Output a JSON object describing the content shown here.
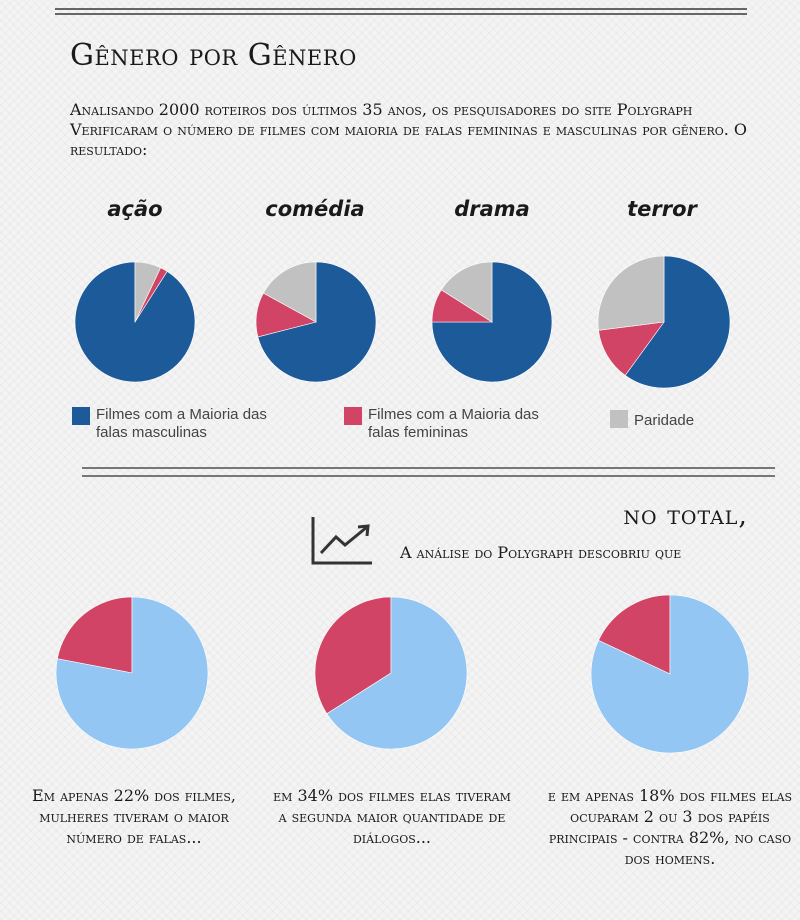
{
  "header": {
    "title": "Gênero por Gênero",
    "intro": "Analisando 2000 roteiros dos últimos 35 anos, os pesquisadores do site Polygraph Verificaram o número de filmes com maioria de falas femininas e masculinas por gênero. O resultado:"
  },
  "colors": {
    "male": "#1c5a99",
    "female": "#d14465",
    "parity": "#c1c1c1",
    "total_male": "#93c6f3",
    "total_female": "#d14465"
  },
  "legend": {
    "male": "Filmes com a Maioria das falas masculinas",
    "female": "Filmes com a Maioria das falas femininas",
    "parity": "Paridade"
  },
  "total": {
    "title": "no total,",
    "subtitle": "A análise do Polygraph descobriu que",
    "icon": "trend-chart-icon"
  },
  "chart_data": [
    {
      "type": "pie",
      "title": "ação",
      "slices": [
        {
          "name": "Filmes com a Maioria das falas masculinas",
          "value": 91
        },
        {
          "name": "Filmes com a Maioria das falas femininas",
          "value": 2
        },
        {
          "name": "Paridade",
          "value": 7
        }
      ]
    },
    {
      "type": "pie",
      "title": "comédia",
      "slices": [
        {
          "name": "Filmes com a Maioria das falas masculinas",
          "value": 71
        },
        {
          "name": "Filmes com a Maioria das falas femininas",
          "value": 12
        },
        {
          "name": "Paridade",
          "value": 17
        }
      ]
    },
    {
      "type": "pie",
      "title": "drama",
      "slices": [
        {
          "name": "Filmes com a Maioria das falas masculinas",
          "value": 75
        },
        {
          "name": "Filmes com a Maioria das falas femininas",
          "value": 9
        },
        {
          "name": "Paridade",
          "value": 16
        }
      ]
    },
    {
      "type": "pie",
      "title": "terror",
      "slices": [
        {
          "name": "Filmes com a Maioria das falas masculinas",
          "value": 60
        },
        {
          "name": "Filmes com a Maioria das falas femininas",
          "value": 13
        },
        {
          "name": "Paridade",
          "value": 27
        }
      ]
    },
    {
      "type": "pie",
      "title": "",
      "caption": "Em apenas 22% dos filmes, mulheres tiveram o maior número de falas...",
      "slices": [
        {
          "name": "mulheres",
          "value": 22
        },
        {
          "name": "",
          "value": 78
        }
      ]
    },
    {
      "type": "pie",
      "title": "",
      "caption": "em 34% dos filmes elas tiveram a segunda maior quantidade de diálogos...",
      "slices": [
        {
          "name": "elas",
          "value": 34
        },
        {
          "name": "",
          "value": 66
        }
      ]
    },
    {
      "type": "pie",
      "title": "",
      "caption": "e em apenas 18% dos filmes elas ocuparam 2 ou 3 dos papéis principais - contra 82%, no caso dos homens.",
      "slices": [
        {
          "name": "elas",
          "value": 18
        },
        {
          "name": "homens",
          "value": 82
        }
      ]
    }
  ]
}
